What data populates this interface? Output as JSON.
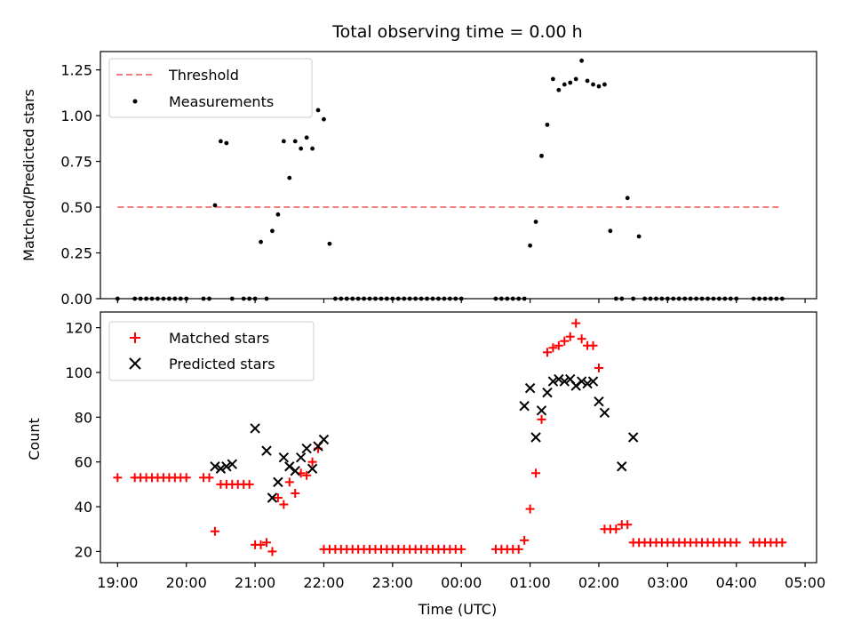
{
  "chart_data": [
    {
      "type": "scatter",
      "title": "Total observing time = 0.00 h",
      "xlabel": "",
      "ylabel": "Matched/Predicted stars",
      "xlim": [
        "18:45",
        "05:10"
      ],
      "ylim": [
        0,
        1.35
      ],
      "y_ticks": [
        0.0,
        0.25,
        0.5,
        0.75,
        1.0,
        1.25
      ],
      "y_tick_labels": [
        "0.00",
        "0.25",
        "0.50",
        "0.75",
        "1.00",
        "1.25"
      ],
      "x_ticks": [
        "19:00",
        "20:00",
        "21:00",
        "22:00",
        "23:00",
        "00:00",
        "01:00",
        "02:00",
        "03:00",
        "04:00",
        "05:00"
      ],
      "legend_position": "top-left",
      "series": [
        {
          "name": "Threshold",
          "style": "dashed-line",
          "color": "#f08080",
          "x": [
            "19:00",
            "04:40"
          ],
          "y": [
            0.5,
            0.5
          ]
        },
        {
          "name": "Measurements",
          "style": "dot",
          "color": "#000000",
          "x": [
            "19:00",
            "19:15",
            "19:20",
            "19:25",
            "19:30",
            "19:35",
            "19:40",
            "19:45",
            "19:50",
            "19:55",
            "20:00",
            "20:15",
            "20:20",
            "20:25",
            "20:30",
            "20:35",
            "20:40",
            "20:50",
            "20:55",
            "21:00",
            "21:05",
            "21:10",
            "21:15",
            "21:20",
            "21:25",
            "21:30",
            "21:35",
            "21:40",
            "21:45",
            "21:50",
            "21:55",
            "22:00",
            "22:05",
            "22:10",
            "22:15",
            "22:20",
            "22:25",
            "22:30",
            "22:35",
            "22:40",
            "22:45",
            "22:50",
            "22:55",
            "23:00",
            "23:05",
            "23:10",
            "23:15",
            "23:20",
            "23:25",
            "23:30",
            "23:35",
            "23:40",
            "23:45",
            "23:50",
            "23:55",
            "00:00",
            "00:30",
            "00:35",
            "00:40",
            "00:45",
            "00:50",
            "00:55",
            "01:00",
            "01:05",
            "01:10",
            "01:15",
            "01:20",
            "01:25",
            "01:30",
            "01:35",
            "01:40",
            "01:45",
            "01:50",
            "01:55",
            "02:00",
            "02:05",
            "02:10",
            "02:15",
            "02:20",
            "02:25",
            "02:30",
            "02:35",
            "02:40",
            "02:45",
            "02:50",
            "02:55",
            "03:00",
            "03:05",
            "03:10",
            "03:15",
            "03:20",
            "03:25",
            "03:30",
            "03:35",
            "03:40",
            "03:45",
            "03:50",
            "03:55",
            "04:00",
            "04:15",
            "04:20",
            "04:25",
            "04:30",
            "04:35",
            "04:40"
          ],
          "y": [
            0,
            0,
            0,
            0,
            0,
            0,
            0,
            0,
            0,
            0,
            0,
            0,
            0,
            0.51,
            0.86,
            0.85,
            0,
            0,
            0,
            0,
            0.31,
            0,
            0.37,
            0.46,
            0.86,
            0.66,
            0.86,
            0.82,
            0.88,
            0.82,
            1.03,
            0.98,
            0.3,
            0,
            0,
            0,
            0,
            0,
            0,
            0,
            0,
            0,
            0,
            0,
            0,
            0,
            0,
            0,
            0,
            0,
            0,
            0,
            0,
            0,
            0,
            0,
            0,
            0,
            0,
            0,
            0,
            0,
            0.29,
            0.42,
            0.78,
            0.95,
            1.2,
            1.14,
            1.17,
            1.18,
            1.2,
            1.3,
            1.19,
            1.17,
            1.16,
            1.17,
            0.37,
            0,
            0,
            0.55,
            0,
            0.34,
            0,
            0,
            0,
            0,
            0,
            0,
            0,
            0,
            0,
            0,
            0,
            0,
            0,
            0,
            0,
            0,
            0,
            0,
            0,
            0,
            0,
            0,
            0
          ]
        }
      ]
    },
    {
      "type": "scatter",
      "title": "",
      "xlabel": "Time (UTC)",
      "ylabel": "Count",
      "xlim": [
        "18:45",
        "05:10"
      ],
      "ylim": [
        15,
        127
      ],
      "y_ticks": [
        20,
        40,
        60,
        80,
        100,
        120
      ],
      "y_tick_labels": [
        "20",
        "40",
        "60",
        "80",
        "100",
        "120"
      ],
      "x_ticks": [
        "19:00",
        "20:00",
        "21:00",
        "22:00",
        "23:00",
        "00:00",
        "01:00",
        "02:00",
        "03:00",
        "04:00",
        "05:00"
      ],
      "x_tick_labels": [
        "19:00",
        "20:00",
        "21:00",
        "22:00",
        "23:00",
        "00:00",
        "01:00",
        "02:00",
        "03:00",
        "04:00",
        "05:00"
      ],
      "legend_position": "top-left",
      "series": [
        {
          "name": "Matched stars",
          "style": "plus",
          "color": "#ff0000",
          "x": [
            "19:00",
            "19:15",
            "19:20",
            "19:25",
            "19:30",
            "19:35",
            "19:40",
            "19:45",
            "19:50",
            "19:55",
            "20:00",
            "20:15",
            "20:20",
            "20:25",
            "20:30",
            "20:35",
            "20:40",
            "20:45",
            "20:50",
            "20:55",
            "21:00",
            "21:05",
            "21:10",
            "21:15",
            "21:20",
            "21:25",
            "21:30",
            "21:35",
            "21:40",
            "21:45",
            "21:50",
            "21:55",
            "22:00",
            "22:05",
            "22:10",
            "22:15",
            "22:20",
            "22:25",
            "22:30",
            "22:35",
            "22:40",
            "22:45",
            "22:50",
            "22:55",
            "23:00",
            "23:05",
            "23:10",
            "23:15",
            "23:20",
            "23:25",
            "23:30",
            "23:35",
            "23:40",
            "23:45",
            "23:50",
            "23:55",
            "00:00",
            "00:30",
            "00:35",
            "00:40",
            "00:45",
            "00:50",
            "00:55",
            "01:00",
            "01:05",
            "01:10",
            "01:15",
            "01:20",
            "01:25",
            "01:30",
            "01:35",
            "01:40",
            "01:45",
            "01:50",
            "01:55",
            "02:00",
            "02:05",
            "02:10",
            "02:15",
            "02:20",
            "02:25",
            "02:30",
            "02:35",
            "02:40",
            "02:45",
            "02:50",
            "02:55",
            "03:00",
            "03:05",
            "03:10",
            "03:15",
            "03:20",
            "03:25",
            "03:30",
            "03:35",
            "03:40",
            "03:45",
            "03:50",
            "03:55",
            "04:00",
            "04:15",
            "04:20",
            "04:25",
            "04:30",
            "04:35",
            "04:40"
          ],
          "y": [
            53,
            53,
            53,
            53,
            53,
            53,
            53,
            53,
            53,
            53,
            53,
            53,
            53,
            29,
            50,
            50,
            50,
            50,
            50,
            50,
            23,
            23,
            24,
            20,
            44,
            41,
            51,
            46,
            55,
            54,
            60,
            66,
            21,
            21,
            21,
            21,
            21,
            21,
            21,
            21,
            21,
            21,
            21,
            21,
            21,
            21,
            21,
            21,
            21,
            21,
            21,
            21,
            21,
            21,
            21,
            21,
            21,
            21,
            21,
            21,
            21,
            21,
            25,
            39,
            55,
            79,
            109,
            111,
            112,
            114,
            116,
            122,
            115,
            112,
            112,
            102,
            30,
            30,
            30,
            32,
            32,
            24,
            24,
            24,
            24,
            24,
            24,
            24,
            24,
            24,
            24,
            24,
            24,
            24,
            24,
            24,
            24,
            24,
            24,
            24,
            24,
            24,
            24,
            24,
            24,
            24
          ]
        },
        {
          "name": "Predicted stars",
          "style": "cross",
          "color": "#000000",
          "x": [
            "20:25",
            "20:30",
            "20:35",
            "20:40",
            "21:00",
            "21:10",
            "21:15",
            "21:20",
            "21:25",
            "21:30",
            "21:35",
            "21:40",
            "21:45",
            "21:50",
            "21:55",
            "22:00",
            "00:55",
            "01:00",
            "01:05",
            "01:10",
            "01:15",
            "01:20",
            "01:25",
            "01:30",
            "01:35",
            "01:40",
            "01:45",
            "01:50",
            "01:55",
            "02:00",
            "02:05",
            "02:20",
            "02:30"
          ],
          "y": [
            58,
            57,
            58,
            59,
            75,
            65,
            44,
            51,
            62,
            58,
            56,
            62,
            66,
            57,
            67,
            70,
            85,
            93,
            71,
            83,
            91,
            96,
            97,
            96,
            97,
            94,
            96,
            95,
            96,
            87,
            82,
            58,
            71
          ]
        }
      ]
    }
  ]
}
